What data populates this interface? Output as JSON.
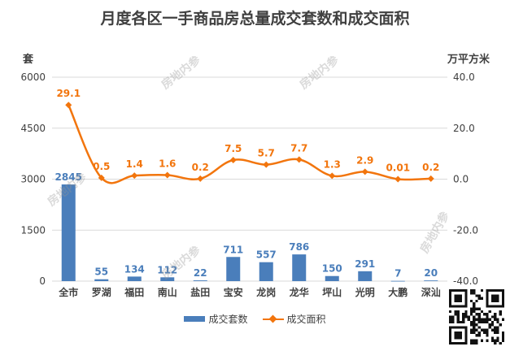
{
  "title": "月度各区一手商品房总量成交套数和成交面积",
  "watermark": "房地内参",
  "chart_data": {
    "type": "bar",
    "title": "月度各区一手商品房总量成交套数和成交面积",
    "categories": [
      "全市",
      "罗湖",
      "福田",
      "南山",
      "盐田",
      "宝安",
      "龙岗",
      "龙华",
      "坪山",
      "光明",
      "大鹏",
      "深汕"
    ],
    "y_unit": "套",
    "y2_unit": "万平方米",
    "ylim": [
      0,
      6000
    ],
    "y2lim": [
      -40.0,
      40.0
    ],
    "y_ticks": [
      "0",
      "1500",
      "3000",
      "4500",
      "6000"
    ],
    "y2_ticks": [
      "-40.0",
      "-20.0",
      "0.0",
      "20.0",
      "40.0"
    ],
    "grid": true,
    "legend_position": "bottom",
    "series": [
      {
        "name": "成交套数",
        "type": "bar",
        "axis": "left",
        "color": "#4a7ebb",
        "values": [
          2845,
          55,
          134,
          112,
          22,
          711,
          557,
          786,
          150,
          291,
          7,
          20
        ],
        "labels": [
          "2845",
          "55",
          "134",
          "112",
          "22",
          "711",
          "557",
          "786",
          "150",
          "291",
          "7",
          "20"
        ]
      },
      {
        "name": "成交面积",
        "type": "line",
        "axis": "right",
        "color": "#f2750d",
        "values": [
          29.1,
          0.5,
          1.4,
          1.6,
          0.2,
          7.5,
          5.7,
          7.7,
          1.3,
          2.9,
          0.01,
          0.2
        ],
        "labels": [
          "29.1",
          "0.5",
          "1.4",
          "1.6",
          "0.2",
          "7.5",
          "5.7",
          "7.7",
          "1.3",
          "2.9",
          "0.01",
          "0.2"
        ]
      }
    ]
  }
}
